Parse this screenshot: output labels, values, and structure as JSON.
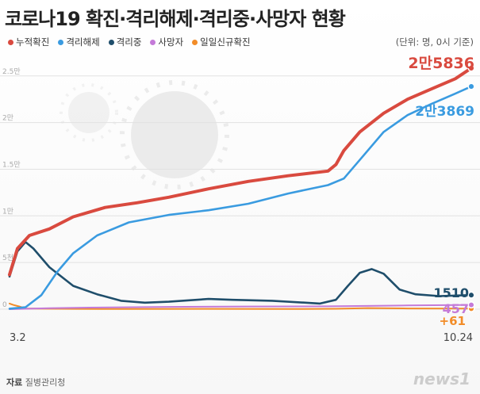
{
  "title": "코로나19 확진·격리해제·격리중·사망자 현황",
  "unit_note": "(단위: 명, 0시 기준)",
  "source": {
    "label": "자료",
    "text": "질병관리청"
  },
  "logo": "news1",
  "colors": {
    "confirmed": "#d94a3f",
    "released": "#3a9be0",
    "isolated": "#1f4e6b",
    "deaths": "#c47ad8",
    "daily": "#f28c28"
  },
  "chart_data": {
    "type": "line",
    "title": "코로나19 확진·격리해제·격리중·사망자 현황",
    "x_range": [
      "3.2",
      "10.24"
    ],
    "x_tick_labels": [
      "3.2",
      "10.24"
    ],
    "ylim": [
      0,
      26000
    ],
    "y_tick_labels": [
      "0",
      "5천",
      "1만",
      "1.5만",
      "2만",
      "2.5만"
    ],
    "y_tick_values": [
      0,
      5000,
      10000,
      15000,
      20000,
      25000
    ],
    "series": [
      {
        "key": "confirmed",
        "name": "누적확진",
        "end_label": "2만5836",
        "points": [
          [
            0,
            3700
          ],
          [
            10,
            6500
          ],
          [
            25,
            7900
          ],
          [
            50,
            8600
          ],
          [
            80,
            9900
          ],
          [
            120,
            10900
          ],
          [
            160,
            11400
          ],
          [
            200,
            12000
          ],
          [
            250,
            12900
          ],
          [
            300,
            13700
          ],
          [
            350,
            14300
          ],
          [
            400,
            14800
          ],
          [
            410,
            15500
          ],
          [
            420,
            17000
          ],
          [
            440,
            19000
          ],
          [
            470,
            21000
          ],
          [
            500,
            22500
          ],
          [
            530,
            23600
          ],
          [
            560,
            24700
          ],
          [
            580,
            25836
          ]
        ]
      },
      {
        "key": "released",
        "name": "격리해제",
        "end_label": "2만3869",
        "points": [
          [
            0,
            50
          ],
          [
            20,
            200
          ],
          [
            40,
            1500
          ],
          [
            60,
            4000
          ],
          [
            80,
            6000
          ],
          [
            110,
            7900
          ],
          [
            150,
            9300
          ],
          [
            200,
            10100
          ],
          [
            250,
            10600
          ],
          [
            300,
            11300
          ],
          [
            350,
            12400
          ],
          [
            400,
            13300
          ],
          [
            420,
            14000
          ],
          [
            440,
            16000
          ],
          [
            470,
            19000
          ],
          [
            500,
            20800
          ],
          [
            530,
            22000
          ],
          [
            560,
            23100
          ],
          [
            580,
            23869
          ]
        ]
      },
      {
        "key": "isolated",
        "name": "격리중",
        "end_label": "1510",
        "points": [
          [
            0,
            3500
          ],
          [
            10,
            6200
          ],
          [
            20,
            7200
          ],
          [
            30,
            6500
          ],
          [
            50,
            4500
          ],
          [
            80,
            2500
          ],
          [
            110,
            1600
          ],
          [
            140,
            900
          ],
          [
            170,
            700
          ],
          [
            200,
            800
          ],
          [
            250,
            1100
          ],
          [
            280,
            1000
          ],
          [
            330,
            900
          ],
          [
            390,
            600
          ],
          [
            410,
            1000
          ],
          [
            425,
            2500
          ],
          [
            440,
            3900
          ],
          [
            455,
            4300
          ],
          [
            470,
            3800
          ],
          [
            490,
            2100
          ],
          [
            510,
            1600
          ],
          [
            540,
            1400
          ],
          [
            580,
            1510
          ]
        ]
      },
      {
        "key": "deaths",
        "name": "사망자",
        "end_label": "457",
        "points": [
          [
            0,
            0
          ],
          [
            50,
            100
          ],
          [
            100,
            170
          ],
          [
            200,
            250
          ],
          [
            300,
            290
          ],
          [
            400,
            310
          ],
          [
            500,
            400
          ],
          [
            580,
            457
          ]
        ]
      },
      {
        "key": "daily",
        "name": "일일신규확진",
        "end_label": "+61",
        "points": [
          [
            0,
            600
          ],
          [
            5,
            450
          ],
          [
            12,
            300
          ],
          [
            20,
            80
          ],
          [
            40,
            50
          ],
          [
            80,
            30
          ],
          [
            150,
            20
          ],
          [
            250,
            30
          ],
          [
            350,
            20
          ],
          [
            410,
            40
          ],
          [
            450,
            120
          ],
          [
            500,
            80
          ],
          [
            580,
            61
          ]
        ]
      }
    ]
  }
}
